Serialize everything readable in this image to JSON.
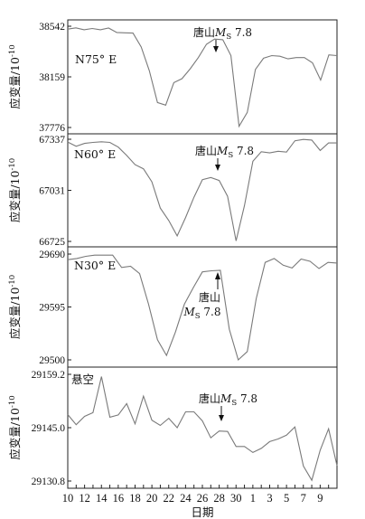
{
  "chart_data": {
    "type": "line",
    "xlabel": "日期",
    "x_ticks": [
      "10",
      "12",
      "14",
      "16",
      "18",
      "20",
      "22",
      "24",
      "26",
      "28",
      "30",
      "1",
      "3",
      "5",
      "7",
      "9"
    ],
    "annotation": "唐山M_S 7.8",
    "panels": [
      {
        "label": "N75° E",
        "ylabel": "应变量/10^-10",
        "yticks": [
          "38542",
          "38159",
          "37776"
        ],
        "ylim": [
          37776,
          38542
        ],
        "annotation_text": [
          "唐山M",
          "S",
          " 7.8"
        ],
        "event_x": 27.3,
        "values": [
          38520,
          38530,
          38515,
          38525,
          38515,
          38528,
          38495,
          38492,
          38490,
          38385,
          38205,
          37965,
          37945,
          38115,
          38145,
          38220,
          38305,
          38405,
          38445,
          38440,
          38320,
          37785,
          37890,
          38215,
          38300,
          38320,
          38315,
          38295,
          38305,
          38305,
          38265,
          38135,
          38325,
          38320
        ]
      },
      {
        "label": "N60° E",
        "ylabel": "应变量/10^-10",
        "yticks": [
          "67337",
          "67031",
          "66725"
        ],
        "ylim": [
          66725,
          67337
        ],
        "annotation_text": [
          "唐山M",
          "S",
          " 7.8"
        ],
        "event_x": 27.3,
        "values": [
          67320,
          67295,
          67312,
          67318,
          67322,
          67318,
          67290,
          67240,
          67185,
          67160,
          67082,
          66925,
          66850,
          66758,
          66868,
          66990,
          67095,
          67108,
          67090,
          66995,
          66728,
          66940,
          67205,
          67262,
          67255,
          67265,
          67260,
          67328,
          67336,
          67332,
          67270,
          67315,
          67315
        ]
      },
      {
        "label": "N30° E",
        "ylabel": "应变量/10^-10",
        "yticks": [
          "29690",
          "29595",
          "29500"
        ],
        "ylim": [
          29500,
          29690
        ],
        "annotation_text": [
          "唐山",
          "M",
          "S",
          " 7.8"
        ],
        "event_x": 27.3,
        "values": [
          29680,
          29682,
          29686,
          29688,
          29688,
          29688,
          29666,
          29668,
          29655,
          29600,
          29536,
          29508,
          29550,
          29600,
          29630,
          29658,
          29660,
          29661,
          29555,
          29500,
          29515,
          29610,
          29675,
          29682,
          29670,
          29665,
          29681,
          29677,
          29664,
          29675,
          29674
        ]
      },
      {
        "label": "悬空",
        "ylabel": "应变量/10^-10",
        "yticks": [
          "29159.2",
          "29145.0",
          "29130.8"
        ],
        "ylim": [
          29130.8,
          29159.2
        ],
        "annotation_text": [
          "唐山M",
          "S",
          " 7.8"
        ],
        "event_x": 27.3,
        "values": [
          29148.5,
          29145.8,
          29148.0,
          29149.0,
          29158.6,
          29147.8,
          29148.4,
          29151.4,
          29146.0,
          29153.4,
          29147.0,
          29145.6,
          29147.5,
          29145.0,
          29149.2,
          29149.2,
          29146.8,
          29142.3,
          29144.1,
          29144.0,
          29140.0,
          29140.0,
          29138.4,
          29139.5,
          29141.3,
          29142.0,
          29143.0,
          29145.2,
          29134.8,
          29131.0,
          29139.0,
          29144.7,
          29134.9
        ]
      }
    ]
  }
}
